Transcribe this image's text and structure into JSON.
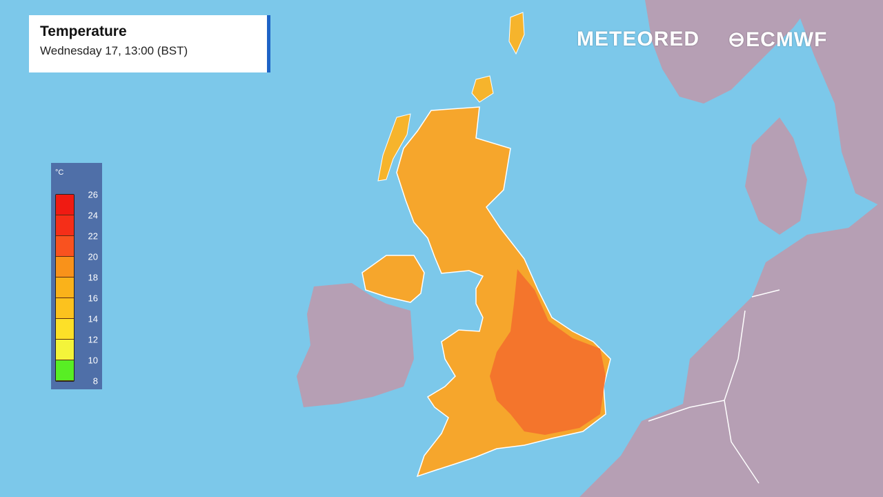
{
  "header": {
    "title": "Temperature",
    "subtitle": "Wednesday 17, 13:00 (BST)"
  },
  "legend": {
    "unit": "°C",
    "ticks": [
      "26",
      "24",
      "22",
      "20",
      "18",
      "16",
      "14",
      "12",
      "10",
      "8"
    ],
    "colors": [
      "#f01a12",
      "#f52e18",
      "#f9521f",
      "#f9921a",
      "#fab21a",
      "#fcc21e",
      "#fde028",
      "#f4f43a",
      "#58ee24"
    ]
  },
  "brands": {
    "meteored": "METEORED",
    "ecmwf": "ECMWF"
  },
  "colors": {
    "sea": "#7cc8ea",
    "land_other": "#b69fb4",
    "uk_warm": "#f6a62c",
    "uk_hot": "#f4702c"
  }
}
